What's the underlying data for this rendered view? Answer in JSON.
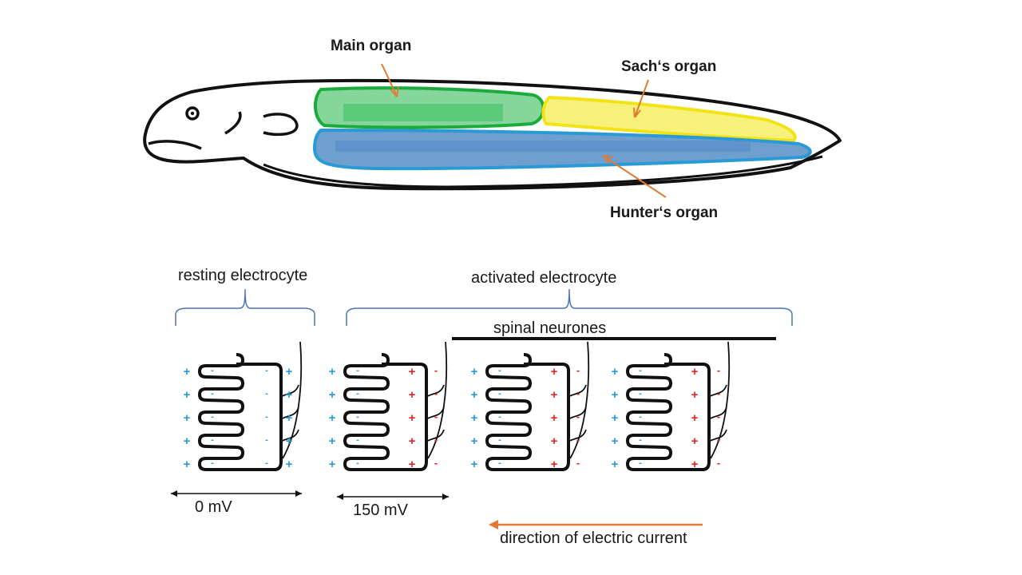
{
  "fish": {
    "main_organ": "Main organ",
    "sachs_organ": "Sach‘s organ",
    "hunters_organ": "Hunter‘s organ"
  },
  "electrocytes": {
    "resting_label": "resting electrocyte",
    "activated_label": "activated electrocyte",
    "spinal_label": "spinal neurones",
    "resting_voltage": "0 mV",
    "activated_voltage": "150 mV",
    "current_label": "direction of electric current"
  },
  "colors": {
    "main_organ": "#1aab3c",
    "sachs_organ": "#f2e318",
    "hunters_organ": "#2a9ad6",
    "hunters_fill": "#6f9fcf",
    "positive_blue": "#2a9ad6",
    "positive_red": "#e0262a",
    "bracket": "#4a72b8",
    "arrow_orange": "#e07a35"
  },
  "signs": {
    "plus": "+",
    "minus": "-"
  }
}
